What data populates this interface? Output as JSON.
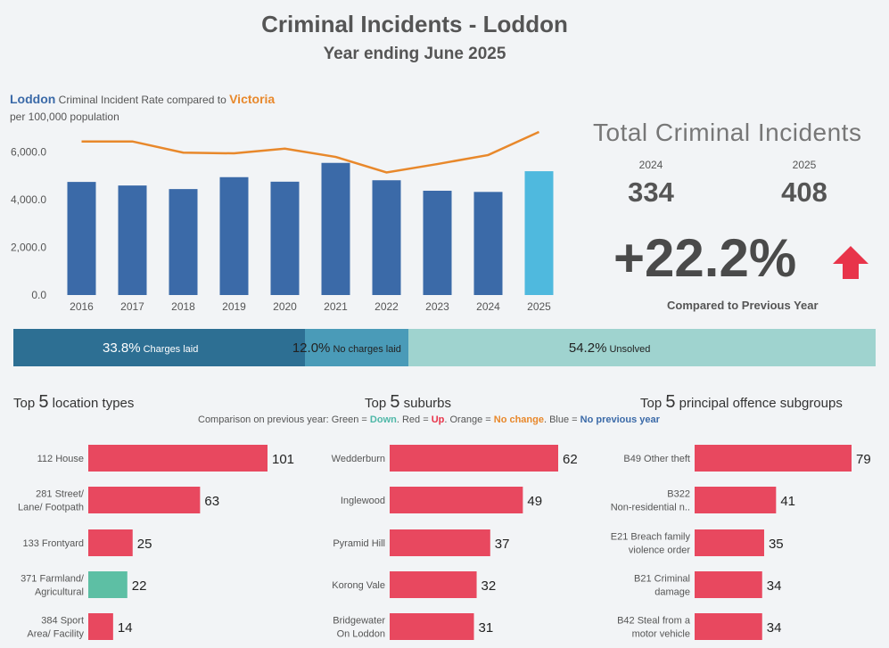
{
  "header": {
    "title": "Criminal Incidents - Loddon",
    "subtitle": "Year ending June 2025"
  },
  "rate_section": {
    "loddon": "Loddon",
    "middle": "Criminal Incident Rate compared to",
    "victoria": "Victoria",
    "sub": "per 100,000 population"
  },
  "totals": {
    "title": "Total Criminal Incidents",
    "year_prev": "2024",
    "value_prev": "334",
    "year_curr": "2025",
    "value_curr": "408",
    "pct_change": "+22.2%",
    "compared": "Compared to Previous Year",
    "arrow_color": "#e8344a",
    "arrow_icon": "up-arrow-icon"
  },
  "outcomes": [
    {
      "pct": "33.8%",
      "label": "Charges laid",
      "value": 33.8,
      "color": "#2d6f93",
      "text_color": "#ffffff"
    },
    {
      "pct": "12.0%",
      "label": "No charges laid",
      "value": 12.0,
      "color": "#4a9bb8",
      "text_color": "#222222"
    },
    {
      "pct": "54.2%",
      "label": "Unsolved",
      "value": 54.2,
      "color": "#9fd3cf",
      "text_color": "#222222"
    }
  ],
  "sections": {
    "locations": {
      "pre": "Top",
      "num": "5",
      "post": "location types"
    },
    "suburbs": {
      "pre": "Top",
      "num": "5",
      "post": "suburbs"
    },
    "offences": {
      "pre": "Top",
      "num": "5",
      "post": "principal offence subgroups"
    }
  },
  "legend_note": {
    "prefix": "Comparison on previous year: Green =",
    "down": "Down",
    "red_prefix": ". Red =",
    "up": "Up",
    "orange_prefix": ". Orange =",
    "nochange": "No change",
    "blue_prefix": ". Blue =",
    "noprev": "No previous year",
    "colors": {
      "down": "#4fb8a8",
      "up": "#e8344a",
      "nochange": "#e8882b",
      "noprev": "#3b6aa8"
    }
  },
  "chart_data": [
    {
      "type": "bar",
      "title": "Criminal Incident Rate compared to Victoria",
      "subtitle": "per 100,000 population",
      "categories": [
        "2016",
        "2017",
        "2018",
        "2019",
        "2020",
        "2021",
        "2022",
        "2023",
        "2024",
        "2025"
      ],
      "series": [
        {
          "name": "Loddon",
          "kind": "bar",
          "values": [
            4750,
            4600,
            4450,
            4950,
            4760,
            5550,
            4820,
            4380,
            4330,
            5200
          ],
          "color": "#3b6aa8",
          "highlight_color": "#4fb9de"
        },
        {
          "name": "Victoria",
          "kind": "line",
          "values": [
            6450,
            6450,
            5980,
            5950,
            6150,
            5800,
            5150,
            5500,
            5880,
            6850
          ],
          "color": "#e8882b"
        }
      ],
      "yticks": [
        "0.0",
        "2,000.0",
        "4,000.0",
        "6,000.0"
      ],
      "ytick_values": [
        0,
        2000,
        4000,
        6000
      ],
      "ylim": [
        0,
        7000
      ],
      "grid": false
    },
    {
      "type": "bar",
      "orientation": "horizontal",
      "title": "Top 5 location types",
      "categories": [
        [
          "112 House"
        ],
        [
          "281 Street/",
          "Lane/ Footpath"
        ],
        [
          "133 Frontyard"
        ],
        [
          "371 Farmland/",
          "Agricultural"
        ],
        [
          "384 Sport",
          "Area/ Facility"
        ]
      ],
      "values": [
        101,
        63,
        25,
        22,
        14
      ],
      "colors": [
        "#e8485f",
        "#e8485f",
        "#e8485f",
        "#5dbfa4",
        "#e8485f"
      ]
    },
    {
      "type": "bar",
      "orientation": "horizontal",
      "title": "Top 5 suburbs",
      "categories": [
        [
          "Wedderburn"
        ],
        [
          "Inglewood"
        ],
        [
          "Pyramid Hill"
        ],
        [
          "Korong Vale"
        ],
        [
          "Bridgewater",
          "On Loddon"
        ]
      ],
      "values": [
        62,
        49,
        37,
        32,
        31
      ],
      "colors": [
        "#e8485f",
        "#e8485f",
        "#e8485f",
        "#e8485f",
        "#e8485f"
      ]
    },
    {
      "type": "bar",
      "orientation": "horizontal",
      "title": "Top 5 principal offence subgroups",
      "categories": [
        [
          "B49 Other theft"
        ],
        [
          "B322",
          "Non-residential n.."
        ],
        [
          "E21 Breach family",
          "violence order"
        ],
        [
          "B21 Criminal",
          "damage"
        ],
        [
          "B42 Steal from a",
          "motor vehicle"
        ]
      ],
      "values": [
        79,
        41,
        35,
        34,
        34
      ],
      "colors": [
        "#e8485f",
        "#e8485f",
        "#e8485f",
        "#e8485f",
        "#e8485f"
      ]
    }
  ]
}
